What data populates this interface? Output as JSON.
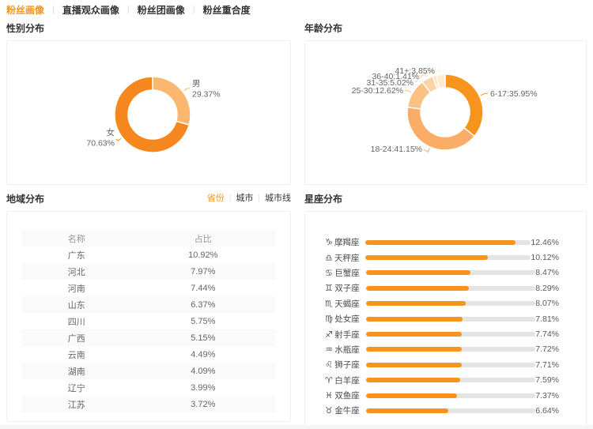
{
  "colors": {
    "accent": "#f7941e",
    "bar_fill": "#f7941e",
    "bar_track": "#e4e4e4",
    "tab_inactive": "#333333",
    "label_text": "#646464"
  },
  "tabbar": {
    "tabs": [
      {
        "label": "粉丝画像",
        "active": true
      },
      {
        "label": "直播观众画像",
        "active": false
      },
      {
        "label": "粉丝团画像",
        "active": false
      },
      {
        "label": "粉丝重合度",
        "active": false
      }
    ]
  },
  "sections": {
    "gender": {
      "title": "性别分布"
    },
    "age": {
      "title": "年龄分布"
    },
    "region": {
      "title": "地域分布",
      "tabs": [
        {
          "label": "省份",
          "active": true
        },
        {
          "label": "城市",
          "active": false
        },
        {
          "label": "城市线",
          "active": false
        }
      ]
    },
    "zodiac": {
      "title": "星座分布"
    }
  },
  "chart_data": [
    {
      "id": "gender",
      "type": "pie",
      "title": "性别分布",
      "donut": true,
      "labels": [
        "男",
        "女"
      ],
      "values": [
        29.37,
        70.63
      ],
      "value_labels": [
        "29.37%",
        "70.63%"
      ],
      "colors": [
        "#fbb76f",
        "#f6871f"
      ]
    },
    {
      "id": "age",
      "type": "pie",
      "title": "年龄分布",
      "donut": true,
      "labels": [
        "6-17",
        "18-24",
        "25-30",
        "31-35",
        "36-40",
        "41+"
      ],
      "values": [
        35.95,
        41.15,
        12.62,
        5.02,
        1.41,
        3.85
      ],
      "value_labels": [
        "6-17:35.95%",
        "18-24:41.15%",
        "25-30:12.62%",
        "31-35:5.02%",
        "36-40:1.41%",
        "41+:3.85%"
      ],
      "colors": [
        "#f7941e",
        "#faad66",
        "#fbc183",
        "#fcd3a4",
        "#fddfc0",
        "#fdead2"
      ]
    },
    {
      "id": "region",
      "type": "table",
      "title": "地域分布",
      "columns": [
        "名称",
        "占比"
      ],
      "rows": [
        [
          "广东",
          "10.92%"
        ],
        [
          "河北",
          "7.97%"
        ],
        [
          "河南",
          "7.44%"
        ],
        [
          "山东",
          "6.37%"
        ],
        [
          "四川",
          "5.75%"
        ],
        [
          "广西",
          "5.15%"
        ],
        [
          "云南",
          "4.49%"
        ],
        [
          "湖南",
          "4.09%"
        ],
        [
          "辽宁",
          "3.99%"
        ],
        [
          "江苏",
          "3.72%"
        ]
      ]
    },
    {
      "id": "zodiac",
      "type": "bar",
      "title": "星座分布",
      "orientation": "horizontal",
      "categories": [
        "摩羯座",
        "天秤座",
        "巨蟹座",
        "双子座",
        "天蝎座",
        "处女座",
        "射手座",
        "水瓶座",
        "狮子座",
        "白羊座",
        "双鱼座",
        "金牛座"
      ],
      "icons": [
        "♑",
        "♎",
        "♋",
        "♊",
        "♏",
        "♍",
        "♐",
        "♒",
        "♌",
        "♈",
        "♓",
        "♉"
      ],
      "values": [
        12.46,
        10.12,
        8.47,
        8.29,
        8.07,
        7.81,
        7.74,
        7.72,
        7.71,
        7.59,
        7.37,
        6.64
      ],
      "value_labels": [
        "12.46%",
        "10.12%",
        "8.47%",
        "8.29%",
        "8.07%",
        "7.81%",
        "7.74%",
        "7.72%",
        "7.71%",
        "7.59%",
        "7.37%",
        "6.64%"
      ],
      "xmax": 13.7
    }
  ]
}
